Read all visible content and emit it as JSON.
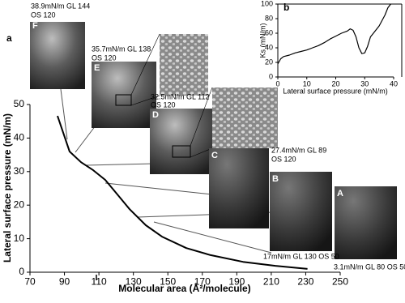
{
  "chart_data": [
    {
      "type": "line",
      "panel_label": "a",
      "xlabel": "Molecular area (Å²/molecule)",
      "ylabel": "Lateral surface pressure (mN/m)",
      "xlim": [
        70,
        250
      ],
      "xticks": [
        70,
        90,
        110,
        130,
        150,
        170,
        190,
        210,
        230,
        250
      ],
      "ylim": [
        0,
        50
      ],
      "yticks": [
        0,
        10,
        20,
        30,
        40,
        50
      ],
      "series": [
        {
          "color": "#000000",
          "x": [
            86,
            93,
            99.6,
            106.7,
            113.7,
            120.7,
            127.8,
            137.2,
            146.6,
            160.7,
            174.8,
            193.6,
            212.4,
            231
          ],
          "values": [
            46.6,
            36,
            32.8,
            30.4,
            27.5,
            23.2,
            18.8,
            14,
            10.6,
            7.2,
            5.1,
            3.1,
            1.9,
            1.0
          ]
        }
      ],
      "annotations": [
        {
          "label": "F",
          "lines": [
            "38.9mN/m GL 144",
            "OS 120"
          ]
        },
        {
          "label": "E",
          "lines": [
            "35.7mN/m GL 138",
            "OS 120"
          ]
        },
        {
          "label": "D",
          "lines": [
            "32.5mN/m GL 112",
            "OS 120"
          ]
        },
        {
          "label": "C",
          "lines": [
            "27.4mN/m GL 89",
            "OS 120"
          ]
        },
        {
          "label": "B",
          "lines": [
            "17mN/m GL 130 OS 50"
          ]
        },
        {
          "label": "A",
          "lines": [
            "3.1mN/m GL 80 OS 50"
          ]
        }
      ]
    },
    {
      "type": "line",
      "panel_label": "b",
      "xlabel": "Lateral surface pressure (mN/m)",
      "ylabel": "Ks (mN/m)",
      "xlim": [
        0,
        40
      ],
      "xticks": [
        0,
        10,
        20,
        30,
        40
      ],
      "ylim": [
        0,
        100
      ],
      "yticks": [
        0,
        20,
        40,
        60,
        80,
        100
      ],
      "series": [
        {
          "color": "#000000",
          "x": [
            0,
            1,
            2,
            4,
            6,
            8,
            10,
            12,
            14,
            16,
            18,
            20,
            22,
            24,
            25,
            26,
            27,
            28,
            29,
            30,
            31,
            32,
            33,
            35,
            37,
            38,
            39
          ],
          "values": [
            18,
            25,
            28,
            30,
            33,
            35,
            37,
            40,
            43,
            47,
            52,
            56,
            60,
            63,
            66,
            64,
            55,
            40,
            32,
            33,
            42,
            55,
            60,
            70,
            85,
            95,
            100
          ]
        }
      ]
    }
  ]
}
